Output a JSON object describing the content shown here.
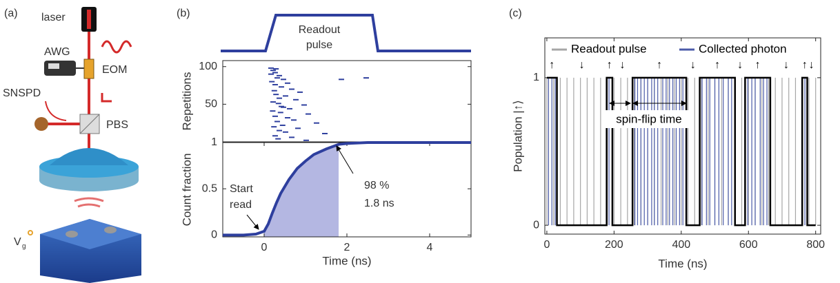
{
  "diagram": {
    "panel_label": "(a)",
    "laser": "laser",
    "awg": "AWG",
    "eom": "EOM",
    "snspd": "SNSPD",
    "pbs": "PBS",
    "gate": "V",
    "gate_sub": "g"
  },
  "chart_data": [
    {
      "type": "scatter",
      "panel_label": "(b)",
      "pulse_label": [
        "Readout",
        "pulse"
      ],
      "y_label": "Repetitions",
      "color": "#2e3f9e",
      "xlim": [
        -1,
        5
      ],
      "ylim": [
        0,
        108
      ],
      "yticks": [
        50,
        100
      ],
      "x": [
        0.1,
        0.15,
        0.2,
        0.1,
        0.3,
        0.25,
        0.4,
        0.12,
        0.5,
        0.2,
        0.35,
        0.6,
        0.18,
        0.8,
        0.22,
        0.45,
        0.3,
        0.7,
        0.15,
        0.28,
        0.9,
        0.4,
        0.55,
        0.14,
        0.33,
        1.0,
        0.2,
        0.5,
        0.65,
        0.25,
        1.2,
        0.38,
        0.17,
        0.75,
        0.3,
        0.45,
        1.4,
        0.2,
        0.6,
        0.27,
        1.8,
        2.4,
        0.35,
        0.95,
        0.22
      ],
      "values": [
        98,
        95,
        92,
        90,
        88,
        85,
        83,
        80,
        78,
        76,
        73,
        70,
        68,
        66,
        63,
        61,
        58,
        56,
        53,
        51,
        49,
        46,
        44,
        41,
        39,
        37,
        34,
        32,
        29,
        27,
        25,
        22,
        20,
        18,
        15,
        13,
        11,
        8,
        6,
        4,
        83,
        85,
        47,
        2,
        97
      ]
    },
    {
      "type": "line",
      "y_label": "Count fraction",
      "x_label": "Time (ns)",
      "color": "#2e3f9e",
      "shade_color": "#b4b7e2",
      "xlim": [
        -1,
        5
      ],
      "xticks": [
        0,
        2,
        4
      ],
      "ylim": [
        -0.02,
        1.0
      ],
      "yticks": [
        0,
        0.5,
        1
      ],
      "x": [
        -1,
        -0.5,
        -0.2,
        0,
        0.1,
        0.2,
        0.3,
        0.4,
        0.6,
        0.8,
        1,
        1.2,
        1.5,
        1.8,
        2,
        2.5,
        3,
        4,
        5
      ],
      "values": [
        0,
        0,
        0.01,
        0.04,
        0.12,
        0.24,
        0.35,
        0.45,
        0.6,
        0.72,
        0.8,
        0.87,
        0.93,
        0.98,
        0.99,
        1,
        1,
        1,
        1
      ],
      "shade_x": [
        0,
        1.8
      ],
      "annotations": {
        "start": [
          "Start",
          "read"
        ],
        "end": [
          "98 %",
          "1.8 ns"
        ]
      }
    },
    {
      "type": "step",
      "panel_label": "(c)",
      "y_label": "Population |↑⟩",
      "x_label": "Time (ns)",
      "color": "#000000",
      "xlim": [
        -6,
        815
      ],
      "xticks": [
        0,
        200,
        400,
        600,
        800
      ],
      "ylim": [
        -0.06,
        1.27
      ],
      "yticks": [
        0,
        1
      ],
      "x": [
        0,
        30,
        30,
        178,
        178,
        195,
        195,
        255,
        255,
        415,
        415,
        455,
        455,
        560,
        560,
        590,
        590,
        665,
        665,
        760,
        760,
        775,
        775,
        800
      ],
      "values": [
        1,
        1,
        0,
        0,
        1,
        1,
        0,
        0,
        1,
        1,
        0,
        0,
        1,
        1,
        0,
        0,
        1,
        1,
        0,
        0,
        1,
        1,
        0,
        0
      ],
      "state_labels": [
        "↑",
        "↓",
        "↑",
        "↓",
        "↑",
        "↓",
        "↑",
        "↓",
        "↑",
        "↓",
        "↑",
        "↓"
      ],
      "annotation": "spin-flip time",
      "events": [
        {
          "name": "Readout pulse",
          "color": "#a6a6a6",
          "x": [
            0,
            20,
            40,
            60,
            80,
            100,
            120,
            140,
            160,
            180,
            200,
            220,
            240,
            260,
            280,
            300,
            320,
            340,
            360,
            380,
            400,
            420,
            440,
            460,
            480,
            500,
            520,
            540,
            560,
            580,
            600,
            620,
            640,
            660,
            680,
            700,
            720,
            740,
            760,
            780,
            800
          ]
        },
        {
          "name": "Collected photon",
          "color": "#4a5aa8",
          "x": [
            5,
            15,
            25,
            185,
            262,
            270,
            280,
            290,
            300,
            312,
            320,
            330,
            345,
            355,
            365,
            375,
            385,
            395,
            405,
            462,
            475,
            485,
            500,
            512,
            525,
            540,
            550,
            598,
            610,
            620,
            635,
            645,
            655,
            768
          ]
        }
      ]
    }
  ]
}
